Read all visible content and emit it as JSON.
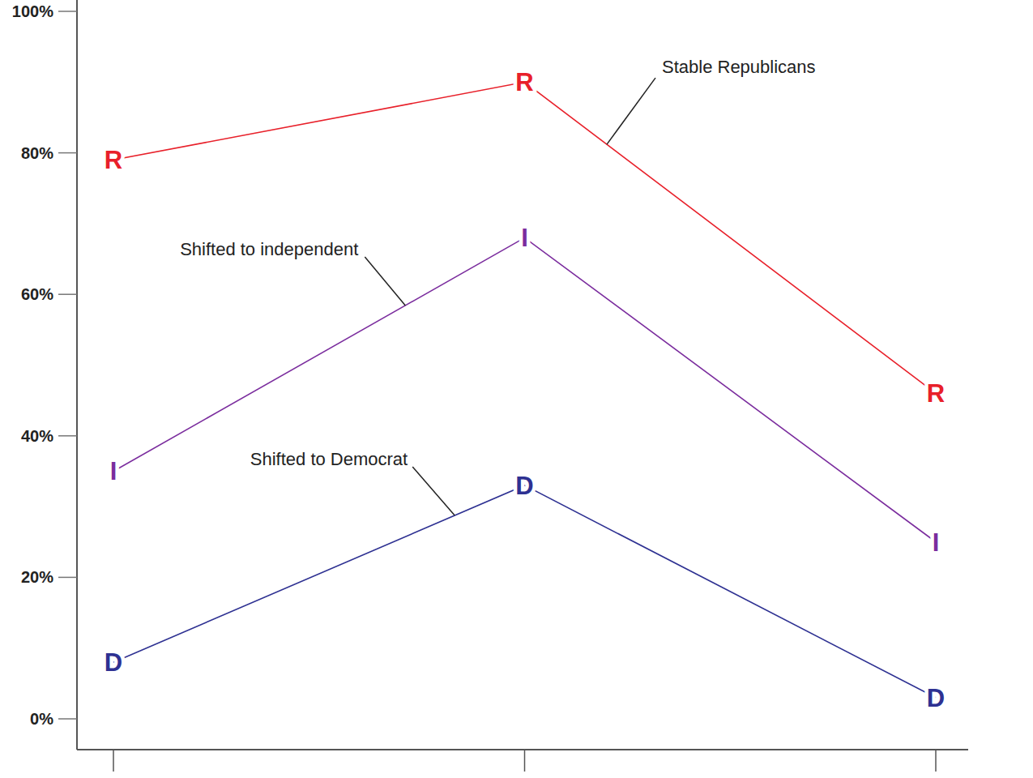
{
  "chart_data": {
    "type": "line",
    "categories": [
      null,
      null,
      null
    ],
    "series": [
      {
        "name": "Stable Republicans",
        "color": "#e8202a",
        "marker": "R",
        "values": [
          79,
          90,
          46
        ]
      },
      {
        "name": "Shifted to independent",
        "color": "#7b2d9e",
        "marker": "I",
        "values": [
          35,
          68,
          25
        ]
      },
      {
        "name": "Shifted to Democrat",
        "color": "#2e3192",
        "marker": "D",
        "values": [
          8,
          33,
          3
        ]
      }
    ],
    "ylim": [
      0,
      100
    ],
    "yticks": [
      {
        "value": 0,
        "label": "0%"
      },
      {
        "value": 20,
        "label": "20%"
      },
      {
        "value": 40,
        "label": "40%"
      },
      {
        "value": 60,
        "label": "60%"
      },
      {
        "value": 80,
        "label": "80%"
      },
      {
        "value": 100,
        "label": "100%"
      }
    ],
    "grid": false
  }
}
